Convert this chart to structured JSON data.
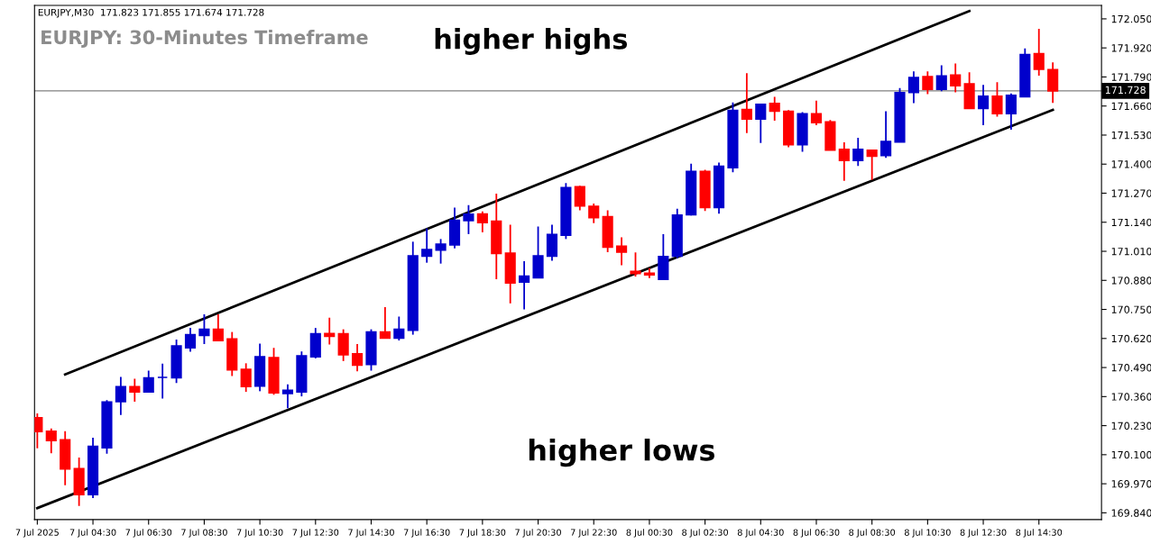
{
  "chart_data": {
    "type": "candlestick",
    "title": "EURJPY: 30-Minutes Timeframe",
    "annotations": [
      "EURJPY,M30  171.823 171.855 171.674 171.728",
      "higher highs",
      "higher lows"
    ],
    "categories": [
      "7 Jul 2025",
      null,
      null,
      null,
      "7 Jul 04:30",
      null,
      null,
      null,
      "7 Jul 06:30",
      null,
      null,
      null,
      "7 Jul 08:30",
      null,
      null,
      null,
      "7 Jul 10:30",
      null,
      null,
      null,
      "7 Jul 12:30",
      null,
      null,
      null,
      "7 Jul 14:30",
      null,
      null,
      null,
      "7 Jul 16:30",
      null,
      null,
      null,
      "7 Jul 18:30",
      null,
      null,
      null,
      "7 Jul 20:30",
      null,
      null,
      null,
      "7 Jul 22:30",
      null,
      null,
      null,
      "8 Jul 00:30",
      null,
      null,
      null,
      "8 Jul 02:30",
      null,
      null,
      null,
      "8 Jul 04:30",
      null,
      null,
      null,
      "8 Jul 06:30",
      null,
      null,
      null,
      "8 Jul 08:30",
      null,
      null,
      null,
      "8 Jul 10:30",
      null,
      null,
      null,
      "8 Jul 12:30",
      null,
      null,
      null,
      "8 Jul 14:30",
      null
    ],
    "ohlc": [
      [
        170.265,
        170.285,
        170.129,
        170.203
      ],
      [
        170.205,
        170.217,
        170.106,
        170.163
      ],
      [
        170.167,
        170.205,
        169.963,
        170.036
      ],
      [
        170.038,
        170.087,
        169.871,
        169.921
      ],
      [
        169.921,
        170.176,
        169.906,
        170.137
      ],
      [
        170.131,
        170.344,
        170.104,
        170.336
      ],
      [
        170.337,
        170.448,
        170.278,
        170.404
      ],
      [
        170.404,
        170.44,
        170.337,
        170.381
      ],
      [
        170.381,
        170.476,
        170.381,
        170.444
      ],
      [
        170.446,
        170.507,
        170.351,
        170.446
      ],
      [
        170.444,
        170.615,
        170.421,
        170.587
      ],
      [
        170.578,
        170.668,
        170.561,
        170.637
      ],
      [
        170.634,
        170.728,
        170.595,
        170.661
      ],
      [
        170.661,
        170.728,
        170.607,
        170.61
      ],
      [
        170.618,
        170.649,
        170.452,
        170.48
      ],
      [
        170.482,
        170.509,
        170.381,
        170.405
      ],
      [
        170.407,
        170.597,
        170.384,
        170.538
      ],
      [
        170.534,
        170.578,
        170.368,
        170.377
      ],
      [
        170.374,
        170.415,
        170.308,
        170.388
      ],
      [
        170.381,
        170.562,
        170.361,
        170.542
      ],
      [
        170.538,
        170.667,
        170.531,
        170.641
      ],
      [
        170.642,
        170.713,
        170.593,
        170.63
      ],
      [
        170.641,
        170.661,
        170.519,
        170.547
      ],
      [
        170.551,
        170.595,
        170.473,
        170.501
      ],
      [
        170.504,
        170.661,
        170.476,
        170.649
      ],
      [
        170.649,
        170.76,
        170.622,
        170.622
      ],
      [
        170.622,
        170.718,
        170.611,
        170.661
      ],
      [
        170.657,
        171.053,
        170.637,
        170.99
      ],
      [
        170.988,
        171.113,
        170.959,
        171.018
      ],
      [
        171.015,
        171.065,
        170.955,
        171.042
      ],
      [
        171.039,
        171.206,
        171.023,
        171.149
      ],
      [
        171.147,
        171.217,
        171.087,
        171.176
      ],
      [
        171.177,
        171.188,
        171.095,
        171.138
      ],
      [
        171.145,
        171.268,
        170.885,
        171.0
      ],
      [
        171.002,
        171.129,
        170.777,
        170.868
      ],
      [
        170.872,
        170.966,
        170.75,
        170.899
      ],
      [
        170.892,
        171.121,
        170.892,
        170.99
      ],
      [
        170.988,
        171.129,
        170.968,
        171.085
      ],
      [
        171.082,
        171.315,
        171.065,
        171.295
      ],
      [
        171.299,
        171.303,
        171.193,
        171.213
      ],
      [
        171.211,
        171.224,
        171.136,
        171.161
      ],
      [
        171.165,
        171.193,
        171.006,
        171.029
      ],
      [
        171.033,
        171.073,
        170.948,
        171.006
      ],
      [
        170.92,
        171.005,
        170.897,
        170.911
      ],
      [
        170.912,
        170.935,
        170.89,
        170.905
      ],
      [
        170.885,
        171.087,
        170.885,
        170.987
      ],
      [
        170.988,
        171.2,
        170.979,
        171.172
      ],
      [
        171.174,
        171.402,
        171.17,
        171.367
      ],
      [
        171.367,
        171.375,
        171.19,
        171.206
      ],
      [
        171.206,
        171.407,
        171.178,
        171.391
      ],
      [
        171.384,
        171.676,
        171.364,
        171.64
      ],
      [
        171.644,
        171.807,
        171.539,
        171.602
      ],
      [
        171.602,
        171.668,
        171.495,
        171.668
      ],
      [
        171.672,
        171.701,
        171.594,
        171.637
      ],
      [
        171.636,
        171.642,
        171.475,
        171.487
      ],
      [
        171.487,
        171.633,
        171.455,
        171.625
      ],
      [
        171.625,
        171.684,
        171.574,
        171.586
      ],
      [
        171.589,
        171.597,
        171.463,
        171.463
      ],
      [
        171.466,
        171.498,
        171.325,
        171.416
      ],
      [
        171.416,
        171.518,
        171.392,
        171.466
      ],
      [
        171.462,
        171.462,
        171.329,
        171.436
      ],
      [
        171.439,
        171.637,
        171.428,
        171.501
      ],
      [
        171.499,
        171.74,
        171.499,
        171.72
      ],
      [
        171.721,
        171.815,
        171.673,
        171.787
      ],
      [
        171.791,
        171.815,
        171.713,
        171.735
      ],
      [
        171.735,
        171.842,
        171.726,
        171.795
      ],
      [
        171.799,
        171.85,
        171.721,
        171.751
      ],
      [
        171.759,
        171.811,
        171.649,
        171.649
      ],
      [
        171.649,
        171.755,
        171.574,
        171.704
      ],
      [
        171.704,
        171.767,
        171.613,
        171.626
      ],
      [
        171.626,
        171.716,
        171.554,
        171.708
      ],
      [
        171.701,
        171.918,
        171.701,
        171.89
      ],
      [
        171.894,
        172.005,
        171.796,
        171.824
      ],
      [
        171.823,
        171.855,
        171.674,
        171.728
      ]
    ],
    "colors": [
      "#ff0000",
      "#ff0000",
      "#ff0000",
      "#ff0000",
      "#0000cc",
      "#0000cc",
      "#0000cc",
      "#ff0000",
      "#0000cc",
      "#0000cc",
      "#0000cc",
      "#0000cc",
      "#0000cc",
      "#ff0000",
      "#ff0000",
      "#ff0000",
      "#0000cc",
      "#ff0000",
      "#0000cc",
      "#0000cc",
      "#0000cc",
      "#ff0000",
      "#ff0000",
      "#ff0000",
      "#0000cc",
      "#ff0000",
      "#0000cc",
      "#0000cc",
      "#0000cc",
      "#0000cc",
      "#0000cc",
      "#0000cc",
      "#ff0000",
      "#ff0000",
      "#ff0000",
      "#0000cc",
      "#0000cc",
      "#0000cc",
      "#0000cc",
      "#ff0000",
      "#ff0000",
      "#ff0000",
      "#ff0000",
      "#ff0000",
      "#ff0000",
      "#0000cc",
      "#0000cc",
      "#0000cc",
      "#ff0000",
      "#0000cc",
      "#0000cc",
      "#ff0000",
      "#0000cc",
      "#ff0000",
      "#ff0000",
      "#0000cc",
      "#ff0000",
      "#ff0000",
      "#ff0000",
      "#0000cc",
      "#ff0000",
      "#0000cc",
      "#0000cc",
      "#0000cc",
      "#ff0000",
      "#0000cc",
      "#ff0000",
      "#ff0000",
      "#0000cc",
      "#ff0000",
      "#0000cc",
      "#0000cc",
      "#ff0000",
      "#ff0000"
    ],
    "series": [
      {
        "type": "line",
        "color": "#000000",
        "values": [
          null,
          null,
          170.459,
          null,
          null,
          null,
          null,
          null,
          null,
          null,
          null,
          null,
          null,
          null,
          null,
          null,
          null,
          null,
          null,
          null,
          null,
          null,
          null,
          null,
          null,
          null,
          null,
          null,
          null,
          null,
          null,
          null,
          null,
          null,
          null,
          null,
          null,
          null,
          null,
          null,
          null,
          null,
          null,
          null,
          null,
          null,
          null,
          null,
          null,
          null,
          null,
          null,
          null,
          null,
          null,
          null,
          null,
          null,
          null,
          null,
          null,
          null,
          null,
          null,
          null,
          null,
          null,
          172.085,
          null,
          null,
          null,
          null,
          null,
          null
        ]
      },
      {
        "type": "line",
        "color": "#000000",
        "values": [
          169.861,
          null,
          null,
          null,
          null,
          null,
          null,
          null,
          null,
          null,
          null,
          null,
          null,
          null,
          null,
          null,
          null,
          null,
          null,
          null,
          null,
          null,
          null,
          null,
          null,
          null,
          null,
          null,
          null,
          null,
          null,
          null,
          null,
          null,
          null,
          null,
          null,
          null,
          null,
          null,
          null,
          null,
          null,
          null,
          null,
          null,
          null,
          null,
          null,
          null,
          null,
          null,
          null,
          null,
          null,
          null,
          null,
          null,
          null,
          null,
          null,
          null,
          null,
          null,
          null,
          null,
          null,
          null,
          null,
          null,
          null,
          null,
          null,
          171.643
        ]
      }
    ],
    "ref_lines": [
      {
        "axis": "y",
        "value": 171.728,
        "label": "171.728",
        "color": "#808080"
      }
    ],
    "ylim": [
      169.81,
      172.11
    ],
    "yticks": [
      {
        "value": 169.84,
        "label": "169.840"
      },
      {
        "value": 169.97,
        "label": "169.970"
      },
      {
        "value": 170.1,
        "label": "170.100"
      },
      {
        "value": 170.23,
        "label": "170.230"
      },
      {
        "value": 170.36,
        "label": "170.360"
      },
      {
        "value": 170.49,
        "label": "170.490"
      },
      {
        "value": 170.62,
        "label": "170.620"
      },
      {
        "value": 170.75,
        "label": "170.750"
      },
      {
        "value": 170.88,
        "label": "170.880"
      },
      {
        "value": 171.01,
        "label": "171.010"
      },
      {
        "value": 171.14,
        "label": "171.140"
      },
      {
        "value": 171.27,
        "label": "171.270"
      },
      {
        "value": 171.4,
        "label": "171.400"
      },
      {
        "value": 171.53,
        "label": "171.530"
      },
      {
        "value": 171.66,
        "label": "171.660"
      },
      {
        "value": 171.79,
        "label": "171.790"
      },
      {
        "value": 171.92,
        "label": "171.920"
      },
      {
        "value": 172.05,
        "label": "172.050"
      }
    ],
    "legend": false
  }
}
